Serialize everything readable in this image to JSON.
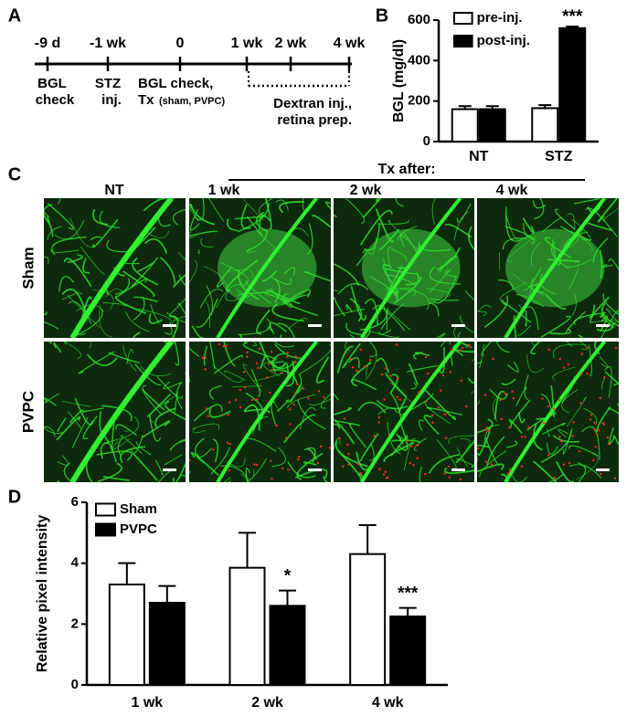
{
  "panel_a": {
    "label": "A",
    "ticks": [
      "-9 d",
      "-1 wk",
      "0",
      "1 wk",
      "2 wk",
      "4 wk"
    ],
    "events": [
      "BGL",
      "check",
      "STZ",
      "inj.",
      "BGL check,",
      "Tx",
      "(sham, PVPC)",
      "Dextran inj.,",
      "retina prep."
    ]
  },
  "panel_c": {
    "label": "C",
    "group_header": "Tx after:",
    "columns": [
      "NT",
      "1 wk",
      "2 wk",
      "4 wk"
    ],
    "rows": [
      "Sham",
      "PVPC"
    ]
  },
  "chart_data": [
    {
      "type": "bar",
      "panel_label": "B",
      "y_label": "BGL (mg/dl)",
      "categories": [
        "NT",
        "STZ"
      ],
      "series": [
        {
          "name": "pre-inj.",
          "color": "#ffffff",
          "values": [
            160,
            165
          ],
          "errors": [
            15,
            15
          ]
        },
        {
          "name": "post-inj.",
          "color": "#000000",
          "values": [
            160,
            560
          ],
          "errors": [
            15,
            8
          ]
        }
      ],
      "ylim": [
        0,
        600
      ],
      "yticks": [
        0,
        200,
        400,
        600
      ],
      "annotations": [
        {
          "text": "***",
          "category": "STZ",
          "series": "post-inj."
        }
      ]
    },
    {
      "type": "bar",
      "panel_label": "D",
      "y_label": "Relative pixel intensity",
      "categories": [
        "1 wk",
        "2 wk",
        "4 wk"
      ],
      "series": [
        {
          "name": "Sham",
          "color": "#ffffff",
          "values": [
            3.3,
            3.85,
            4.3
          ],
          "errors": [
            0.7,
            1.15,
            0.95
          ]
        },
        {
          "name": "PVPC",
          "color": "#000000",
          "values": [
            2.7,
            2.6,
            2.25
          ],
          "errors": [
            0.55,
            0.5,
            0.28
          ]
        }
      ],
      "ylim": [
        0,
        6
      ],
      "yticks": [
        0,
        2,
        4,
        6
      ],
      "annotations": [
        {
          "text": "*",
          "category": "2 wk",
          "series": "PVPC"
        },
        {
          "text": "***",
          "category": "4 wk",
          "series": "PVPC"
        }
      ]
    }
  ]
}
